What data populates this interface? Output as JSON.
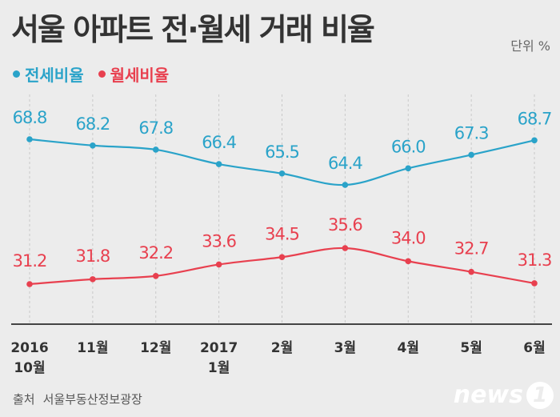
{
  "header": {
    "title": "서울 아파트 전·월세 거래 비율",
    "unit": "단위 %"
  },
  "colors": {
    "jeonse": "#2aa3c9",
    "wolse": "#e8404f"
  },
  "legend": {
    "jeonse": "전세비율",
    "wolse": "월세비율"
  },
  "footer": {
    "source_label": "출처",
    "source_value": "서울부동산정보광장",
    "logo": "news",
    "logo_num": "1"
  },
  "chart_data": {
    "type": "line",
    "title": "서울 아파트 전·월세 거래 비율",
    "categories": [
      "2016 10월",
      "11월",
      "12월",
      "2017 1월",
      "2월",
      "3월",
      "4월",
      "5월",
      "6월"
    ],
    "category_lines": [
      [
        "2016",
        "10월"
      ],
      [
        "11월"
      ],
      [
        "12월"
      ],
      [
        "2017",
        "1월"
      ],
      [
        "2월"
      ],
      [
        "3월"
      ],
      [
        "4월"
      ],
      [
        "5월"
      ],
      [
        "6월"
      ]
    ],
    "series": [
      {
        "name": "전세비율",
        "values": [
          68.8,
          68.2,
          67.8,
          66.4,
          65.5,
          64.4,
          66.0,
          67.3,
          68.7
        ]
      },
      {
        "name": "월세비율",
        "values": [
          31.2,
          31.8,
          32.2,
          33.6,
          34.5,
          35.6,
          34.0,
          32.7,
          31.3
        ]
      }
    ],
    "value_labels": {
      "전세비율": [
        "68.8",
        "68.2",
        "67.8",
        "66.4",
        "65.5",
        "64.4",
        "66.0",
        "67.3",
        "68.7"
      ],
      "월세비율": [
        "31.2",
        "31.8",
        "32.2",
        "33.6",
        "34.5",
        "35.6",
        "34.0",
        "32.7",
        "31.3"
      ]
    },
    "grid": "vertical dashed",
    "legend_position": "top-left"
  }
}
